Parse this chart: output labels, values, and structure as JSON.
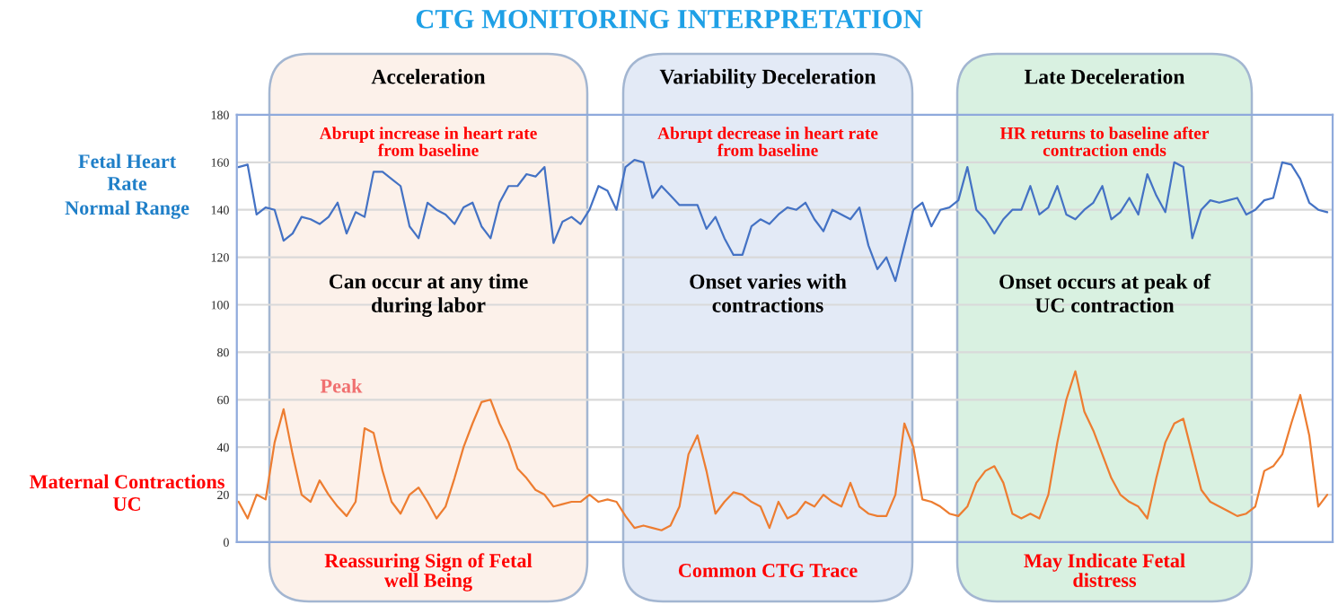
{
  "chart_data": {
    "type": "line",
    "title": "CTG MONITORING INTERPRETATION",
    "categories": [
      null,
      null,
      null,
      null,
      null,
      null,
      null,
      null,
      null,
      null,
      null,
      null,
      null,
      null,
      null,
      null,
      null,
      null,
      null,
      null,
      null,
      null,
      null,
      null,
      null,
      null,
      null,
      null,
      null,
      null,
      null,
      null,
      null,
      null,
      null,
      null,
      null,
      null,
      null,
      null,
      null,
      null,
      null,
      null,
      null,
      null,
      null,
      null,
      null,
      null,
      null,
      null,
      null,
      null,
      null,
      null,
      null,
      null,
      null,
      null,
      null,
      null,
      null,
      null,
      null,
      null,
      null,
      null,
      null,
      null,
      null,
      null,
      null,
      null,
      null,
      null,
      null,
      null,
      null,
      null,
      null,
      null,
      null,
      null,
      null,
      null,
      null,
      null,
      null,
      null,
      null,
      null,
      null,
      null,
      null,
      null,
      null,
      null,
      null,
      null,
      null,
      null,
      null,
      null,
      null,
      null,
      null,
      null,
      null,
      null,
      null,
      null,
      null,
      null,
      null,
      null,
      null,
      null,
      null,
      null,
      null,
      null
    ],
    "series": [
      {
        "color": "#4472c4",
        "values": [
          158,
          159,
          138,
          141,
          140,
          127,
          130,
          137,
          136,
          134,
          137,
          143,
          130,
          139,
          137,
          156,
          156,
          153,
          150,
          133,
          128,
          143,
          140,
          138,
          134,
          141,
          143,
          133,
          128,
          143,
          150,
          150,
          155,
          154,
          158,
          126,
          135,
          137,
          134,
          140,
          150,
          148,
          140,
          158,
          161,
          160,
          145,
          150,
          146,
          142,
          142,
          142,
          132,
          137,
          128,
          121,
          121,
          133,
          136,
          134,
          138,
          141,
          140,
          143,
          136,
          131,
          140,
          138,
          136,
          141,
          125,
          115,
          120,
          110,
          125,
          140,
          143,
          133,
          140,
          141,
          144,
          158,
          140,
          136,
          130,
          136,
          140,
          140,
          150,
          138,
          141,
          150,
          138,
          136,
          140,
          143,
          150,
          136,
          139,
          145,
          138,
          155,
          146,
          139,
          160,
          158,
          128,
          140,
          144,
          143,
          144,
          145,
          138,
          140,
          144,
          145,
          160,
          159,
          153,
          143,
          140,
          139
        ]
      },
      {
        "color": "#ed7d31",
        "values": [
          17,
          10,
          20,
          18,
          42,
          56,
          37,
          20,
          17,
          26,
          20,
          15,
          11,
          17,
          48,
          46,
          30,
          17,
          12,
          20,
          23,
          17,
          10,
          15,
          27,
          40,
          50,
          59,
          60,
          50,
          42,
          31,
          27,
          22,
          20,
          15,
          16,
          17,
          17,
          20,
          17,
          18,
          17,
          11,
          6,
          7,
          6,
          5,
          7,
          15,
          37,
          45,
          30,
          12,
          17,
          21,
          20,
          17,
          15,
          6,
          17,
          10,
          12,
          17,
          15,
          20,
          17,
          15,
          25,
          15,
          12,
          11,
          11,
          20,
          50,
          40,
          18,
          17,
          15,
          12,
          11,
          15,
          25,
          30,
          32,
          25,
          12,
          10,
          12,
          10,
          20,
          42,
          60,
          72,
          55,
          47,
          37,
          27,
          20,
          17,
          15,
          10,
          27,
          42,
          50,
          52,
          37,
          22,
          17,
          15,
          13,
          11,
          12,
          15,
          30,
          32,
          37,
          50,
          62,
          45,
          15,
          20
        ]
      }
    ],
    "ylim": [
      0,
      180
    ],
    "yticks": [
      0,
      20,
      40,
      60,
      80,
      100,
      120,
      140,
      160,
      180
    ],
    "grid": "y",
    "tick_labels": "y",
    "annotations": [
      "Fetal Heart\nRate",
      "Normal Range",
      "Maternal Contractions\nUC",
      "Peak",
      "Acceleration",
      "Variability Deceleration",
      "Late Deceleration",
      "Abrupt increase in heart rate\nfrom baseline",
      "Can occur at any time\nduring labor",
      "Reassuring Sign of Fetal\nwell Being",
      "Abrupt decrease in heart rate\nfrom baseline",
      "Onset varies with\ncontractions",
      "Common CTG Trace",
      "HR returns to baseline after\ncontraction ends",
      "Onset occurs at peak of\nUC contraction",
      "May Indicate Fetal\ndistress"
    ]
  }
}
